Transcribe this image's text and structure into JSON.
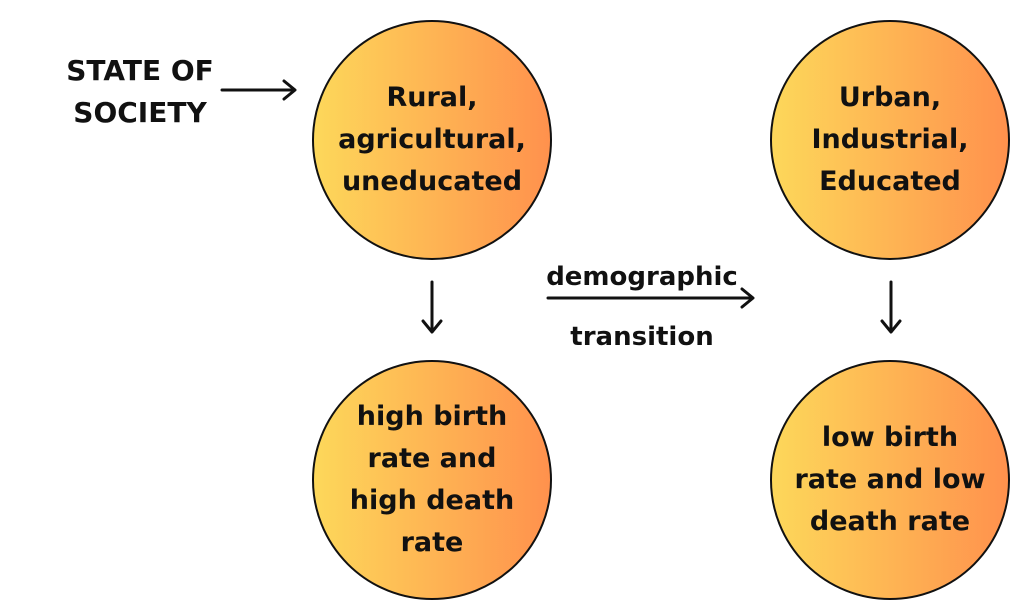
{
  "colors": {
    "gradient_start": "#fdd85a",
    "gradient_end": "#ff914d",
    "stroke": "#111111",
    "text": "#111111"
  },
  "state_label": [
    "STATE OF",
    "SOCIETY"
  ],
  "transition_label": [
    "demographic",
    "transition"
  ],
  "nodes": {
    "rural": [
      "Rural,",
      "agricultural,",
      "uneducated"
    ],
    "urban": [
      "Urban,",
      "Industrial,",
      "Educated"
    ],
    "high_rates": [
      "high birth",
      "rate and",
      "high death",
      "rate"
    ],
    "low_rates": [
      "low birth",
      "rate and low",
      "death rate"
    ]
  }
}
